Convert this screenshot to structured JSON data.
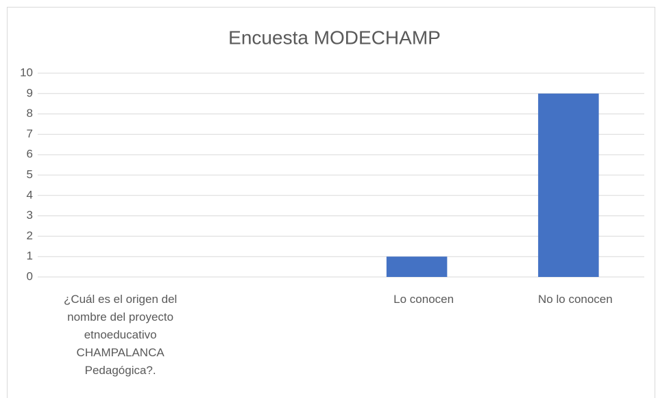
{
  "chart_data": {
    "type": "bar",
    "title": "Encuesta MODECHAMP",
    "categories": [
      "¿Cuál es el origen del nombre del proyecto etnoeducativo CHAMPALANCA Pedagógica?.",
      null,
      "Lo conocen",
      "No lo conocen"
    ],
    "values": [
      null,
      null,
      1,
      9
    ],
    "color": "#4472c4",
    "ylim": [
      0,
      10
    ],
    "yticks": [
      0,
      1,
      2,
      3,
      4,
      5,
      6,
      7,
      8,
      9,
      10
    ],
    "grid": true
  }
}
